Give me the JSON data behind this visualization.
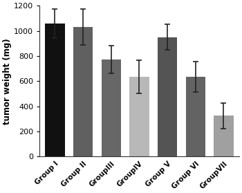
{
  "categories": [
    "Group I",
    "Group II",
    "GroupIII",
    "GroupIV",
    "Group V",
    "Group VI",
    "GroupVII"
  ],
  "values": [
    1060,
    1030,
    770,
    635,
    950,
    635,
    325
  ],
  "errors": [
    115,
    145,
    110,
    130,
    100,
    120,
    100
  ],
  "bar_colors": [
    "#111111",
    "#606060",
    "#676767",
    "#b8b8b8",
    "#545454",
    "#636363",
    "#a0a0a0"
  ],
  "ylabel": "tumor weight (mg)",
  "ylim": [
    0,
    1200
  ],
  "yticks": [
    0,
    200,
    400,
    600,
    800,
    1000,
    1200
  ],
  "background_color": "#ffffff",
  "bar_width": 0.7,
  "error_capsize": 3,
  "error_color": "#222222",
  "error_linewidth": 1.2
}
